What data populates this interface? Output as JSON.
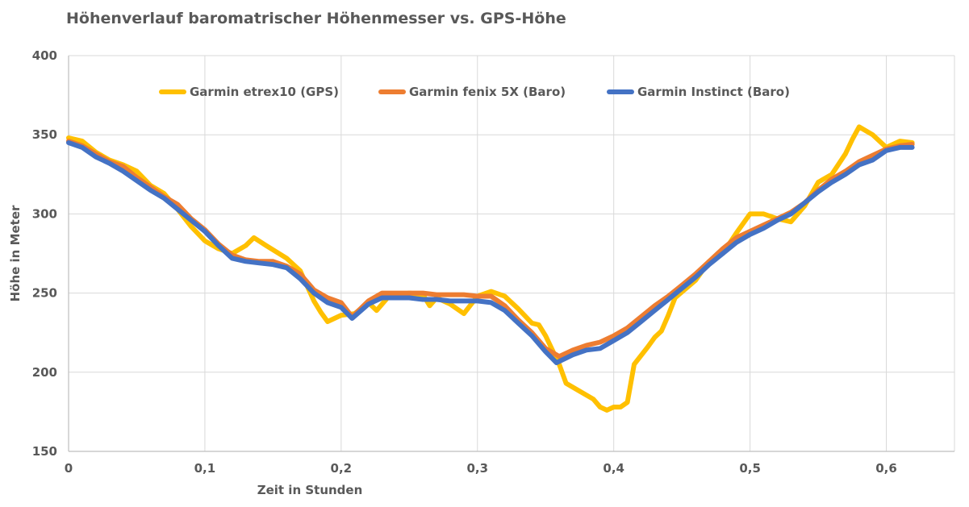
{
  "chart_data": {
    "type": "line",
    "title": "Höhenverlauf baromatrischer Höhenmesser vs. GPS-Höhe",
    "xlabel": "Zeit in Stunden",
    "ylabel": "Höhe in Meter",
    "xlim": [
      0,
      0.65
    ],
    "ylim": [
      150,
      400
    ],
    "x_ticks": [
      0,
      0.1,
      0.2,
      0.3,
      0.4,
      0.5,
      0.6
    ],
    "x_tick_labels": [
      "0",
      "0,1",
      "0,2",
      "0,3",
      "0,4",
      "0,5",
      "0,6"
    ],
    "y_ticks": [
      150,
      200,
      250,
      300,
      350,
      400
    ],
    "y_tick_labels": [
      "150",
      "200",
      "250",
      "300",
      "350",
      "400"
    ],
    "grid": true,
    "legend_position": "top",
    "series": [
      {
        "name": "Garmin etrex10 (GPS)",
        "color": "#FFC000",
        "points": [
          [
            0,
            348
          ],
          [
            0.01,
            346
          ],
          [
            0.02,
            339
          ],
          [
            0.03,
            334
          ],
          [
            0.04,
            331
          ],
          [
            0.05,
            327
          ],
          [
            0.06,
            318
          ],
          [
            0.07,
            313
          ],
          [
            0.08,
            303
          ],
          [
            0.09,
            292
          ],
          [
            0.1,
            283
          ],
          [
            0.11,
            278
          ],
          [
            0.12,
            275
          ],
          [
            0.13,
            280
          ],
          [
            0.136,
            285
          ],
          [
            0.145,
            280
          ],
          [
            0.16,
            272
          ],
          [
            0.17,
            264
          ],
          [
            0.18,
            245
          ],
          [
            0.185,
            238
          ],
          [
            0.19,
            232
          ],
          [
            0.2,
            236
          ],
          [
            0.21,
            237
          ],
          [
            0.22,
            244
          ],
          [
            0.226,
            239
          ],
          [
            0.235,
            248
          ],
          [
            0.25,
            250
          ],
          [
            0.26,
            249
          ],
          [
            0.265,
            242
          ],
          [
            0.27,
            247
          ],
          [
            0.28,
            243
          ],
          [
            0.29,
            237
          ],
          [
            0.3,
            248
          ],
          [
            0.31,
            251
          ],
          [
            0.32,
            248
          ],
          [
            0.33,
            240
          ],
          [
            0.34,
            231
          ],
          [
            0.345,
            230
          ],
          [
            0.35,
            223
          ],
          [
            0.36,
            205
          ],
          [
            0.365,
            193
          ],
          [
            0.375,
            188
          ],
          [
            0.385,
            183
          ],
          [
            0.39,
            178
          ],
          [
            0.395,
            176
          ],
          [
            0.4,
            178
          ],
          [
            0.405,
            178
          ],
          [
            0.41,
            181
          ],
          [
            0.415,
            205
          ],
          [
            0.425,
            216
          ],
          [
            0.43,
            222
          ],
          [
            0.435,
            226
          ],
          [
            0.44,
            236
          ],
          [
            0.445,
            247
          ],
          [
            0.46,
            258
          ],
          [
            0.47,
            270
          ],
          [
            0.48,
            275
          ],
          [
            0.49,
            288
          ],
          [
            0.5,
            300
          ],
          [
            0.51,
            300
          ],
          [
            0.52,
            297
          ],
          [
            0.53,
            295
          ],
          [
            0.54,
            305
          ],
          [
            0.55,
            320
          ],
          [
            0.56,
            325
          ],
          [
            0.57,
            338
          ],
          [
            0.575,
            347
          ],
          [
            0.58,
            355
          ],
          [
            0.59,
            350
          ],
          [
            0.6,
            342
          ],
          [
            0.61,
            346
          ],
          [
            0.619,
            345
          ]
        ]
      },
      {
        "name": "Garmin fenix 5X (Baro)",
        "color": "#ED7D31",
        "points": [
          [
            0,
            346
          ],
          [
            0.01,
            343
          ],
          [
            0.02,
            338
          ],
          [
            0.03,
            333
          ],
          [
            0.04,
            330
          ],
          [
            0.05,
            323
          ],
          [
            0.06,
            317
          ],
          [
            0.07,
            311
          ],
          [
            0.08,
            306
          ],
          [
            0.09,
            297
          ],
          [
            0.1,
            290
          ],
          [
            0.11,
            281
          ],
          [
            0.12,
            274
          ],
          [
            0.13,
            271
          ],
          [
            0.14,
            270
          ],
          [
            0.15,
            270
          ],
          [
            0.16,
            267
          ],
          [
            0.17,
            262
          ],
          [
            0.18,
            252
          ],
          [
            0.19,
            247
          ],
          [
            0.2,
            244
          ],
          [
            0.208,
            235
          ],
          [
            0.22,
            245
          ],
          [
            0.23,
            250
          ],
          [
            0.24,
            250
          ],
          [
            0.25,
            250
          ],
          [
            0.26,
            250
          ],
          [
            0.27,
            249
          ],
          [
            0.28,
            249
          ],
          [
            0.29,
            249
          ],
          [
            0.3,
            248
          ],
          [
            0.31,
            248
          ],
          [
            0.32,
            242
          ],
          [
            0.33,
            233
          ],
          [
            0.34,
            225
          ],
          [
            0.35,
            215
          ],
          [
            0.36,
            210
          ],
          [
            0.37,
            214
          ],
          [
            0.38,
            217
          ],
          [
            0.39,
            219
          ],
          [
            0.4,
            223
          ],
          [
            0.41,
            228
          ],
          [
            0.42,
            235
          ],
          [
            0.43,
            242
          ],
          [
            0.44,
            248
          ],
          [
            0.45,
            255
          ],
          [
            0.46,
            262
          ],
          [
            0.47,
            270
          ],
          [
            0.48,
            278
          ],
          [
            0.49,
            285
          ],
          [
            0.5,
            289
          ],
          [
            0.51,
            293
          ],
          [
            0.52,
            297
          ],
          [
            0.53,
            301
          ],
          [
            0.54,
            307
          ],
          [
            0.55,
            315
          ],
          [
            0.56,
            322
          ],
          [
            0.57,
            327
          ],
          [
            0.58,
            333
          ],
          [
            0.59,
            337
          ],
          [
            0.6,
            341
          ],
          [
            0.61,
            343
          ],
          [
            0.619,
            344
          ]
        ]
      },
      {
        "name": "Garmin Instinct (Baro)",
        "color": "#4472C4",
        "points": [
          [
            0,
            345
          ],
          [
            0.01,
            342
          ],
          [
            0.02,
            336
          ],
          [
            0.03,
            332
          ],
          [
            0.04,
            327
          ],
          [
            0.05,
            321
          ],
          [
            0.06,
            315
          ],
          [
            0.07,
            310
          ],
          [
            0.08,
            303
          ],
          [
            0.09,
            296
          ],
          [
            0.1,
            289
          ],
          [
            0.11,
            280
          ],
          [
            0.12,
            272
          ],
          [
            0.13,
            270
          ],
          [
            0.14,
            269
          ],
          [
            0.15,
            268
          ],
          [
            0.16,
            266
          ],
          [
            0.17,
            259
          ],
          [
            0.18,
            250
          ],
          [
            0.19,
            244
          ],
          [
            0.2,
            241
          ],
          [
            0.208,
            234
          ],
          [
            0.22,
            243
          ],
          [
            0.23,
            247
          ],
          [
            0.24,
            247
          ],
          [
            0.25,
            247
          ],
          [
            0.26,
            246
          ],
          [
            0.27,
            246
          ],
          [
            0.28,
            245
          ],
          [
            0.29,
            245
          ],
          [
            0.3,
            245
          ],
          [
            0.31,
            244
          ],
          [
            0.32,
            239
          ],
          [
            0.33,
            231
          ],
          [
            0.34,
            223
          ],
          [
            0.35,
            213
          ],
          [
            0.358,
            206
          ],
          [
            0.37,
            211
          ],
          [
            0.38,
            214
          ],
          [
            0.39,
            215
          ],
          [
            0.4,
            220
          ],
          [
            0.41,
            225
          ],
          [
            0.42,
            232
          ],
          [
            0.43,
            239
          ],
          [
            0.44,
            246
          ],
          [
            0.45,
            253
          ],
          [
            0.46,
            260
          ],
          [
            0.47,
            268
          ],
          [
            0.48,
            275
          ],
          [
            0.49,
            282
          ],
          [
            0.5,
            287
          ],
          [
            0.51,
            291
          ],
          [
            0.52,
            296
          ],
          [
            0.53,
            300
          ],
          [
            0.54,
            307
          ],
          [
            0.55,
            314
          ],
          [
            0.56,
            320
          ],
          [
            0.57,
            325
          ],
          [
            0.58,
            331
          ],
          [
            0.59,
            334
          ],
          [
            0.6,
            340
          ],
          [
            0.61,
            342
          ],
          [
            0.619,
            342
          ]
        ]
      }
    ]
  }
}
